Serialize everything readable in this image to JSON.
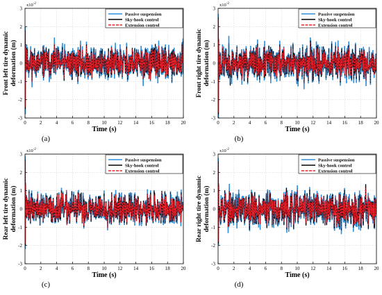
{
  "figure": {
    "series_names": [
      "Passive suspension",
      "Sky-hook control",
      "Extension control"
    ],
    "series_colors": [
      "#2f8fd8",
      "#000000",
      "#e8202a"
    ],
    "exponent_label": "x10",
    "exponent_sup": "-2"
  },
  "chart_data": [
    {
      "type": "line",
      "panel_label": "(a)",
      "ylabel_line1": "Front left tire dynamic",
      "ylabel_line2": "deformation (m)",
      "xlabel": "Time (s)",
      "xlim": [
        0,
        20
      ],
      "ylim": [
        -3,
        3
      ],
      "y_scale_note": "x10^-2",
      "x_ticks": [
        0,
        2,
        4,
        6,
        8,
        10,
        12,
        14,
        16,
        18,
        20
      ],
      "y_ticks": [
        -3,
        -2,
        -1,
        0,
        1,
        2,
        3
      ],
      "series_amplitude_x1e2": [
        {
          "name": "Passive suspension",
          "typical_peak": 1.4,
          "initial_spike": [
            2.0,
            -2.8
          ]
        },
        {
          "name": "Sky-hook control",
          "typical_peak": 1.2,
          "initial_spike": [
            1.8,
            -2.5
          ]
        },
        {
          "name": "Extension control",
          "typical_peak": 1.1,
          "initial_spike": [
            1.7,
            -2.4
          ]
        }
      ],
      "legend_position": "top-right",
      "grid": true,
      "seed": 11
    },
    {
      "type": "line",
      "panel_label": "(b)",
      "ylabel_line1": "Front right tire dynamic",
      "ylabel_line2": "deformation (m)",
      "xlabel": "Time (s)",
      "xlim": [
        0,
        20
      ],
      "ylim": [
        -3,
        3
      ],
      "y_scale_note": "x10^-2",
      "x_ticks": [
        0,
        2,
        4,
        6,
        8,
        10,
        12,
        14,
        16,
        18,
        20
      ],
      "y_ticks": [
        -3,
        -2,
        -1,
        0,
        1,
        2,
        3
      ],
      "series_amplitude_x1e2": [
        {
          "name": "Passive suspension",
          "typical_peak": 1.5,
          "initial_spike": [
            2.7,
            -3.0
          ]
        },
        {
          "name": "Sky-hook control",
          "typical_peak": 1.3,
          "initial_spike": [
            2.5,
            -2.8
          ]
        },
        {
          "name": "Extension control",
          "typical_peak": 1.2,
          "initial_spike": [
            2.4,
            -2.7
          ]
        }
      ],
      "legend_position": "top-right",
      "grid": true,
      "seed": 23
    },
    {
      "type": "line",
      "panel_label": "(c)",
      "ylabel_line1": "Rear left tire dynamic",
      "ylabel_line2": "deformation (m)",
      "xlabel": "Time (s)",
      "xlim": [
        0,
        20
      ],
      "ylim": [
        -3,
        3
      ],
      "y_scale_note": "x10^-2",
      "x_ticks": [
        0,
        2,
        4,
        6,
        8,
        10,
        12,
        14,
        16,
        18,
        20
      ],
      "y_ticks": [
        -3,
        -2,
        -1,
        0,
        1,
        2,
        3
      ],
      "series_amplitude_x1e2": [
        {
          "name": "Passive suspension",
          "typical_peak": 1.3,
          "initial_spike": [
            2.9,
            -2.2
          ]
        },
        {
          "name": "Sky-hook control",
          "typical_peak": 1.2,
          "initial_spike": [
            2.7,
            -2.0
          ]
        },
        {
          "name": "Extension control",
          "typical_peak": 1.1,
          "initial_spike": [
            2.6,
            -1.9
          ]
        }
      ],
      "legend_position": "top-right",
      "grid": true,
      "seed": 37
    },
    {
      "type": "line",
      "panel_label": "(d)",
      "ylabel_line1": "Rear right tire dynamic",
      "ylabel_line2": "deformation (m)",
      "xlabel": "Time (s)",
      "xlim": [
        0,
        20
      ],
      "ylim": [
        -3,
        3
      ],
      "y_scale_note": "x10^-2",
      "x_ticks": [
        0,
        2,
        4,
        6,
        8,
        10,
        12,
        14,
        16,
        18,
        20
      ],
      "y_ticks": [
        -3,
        -2,
        -1,
        0,
        1,
        2,
        3
      ],
      "series_amplitude_x1e2": [
        {
          "name": "Passive suspension",
          "typical_peak": 1.5,
          "initial_spike": [
            2.8,
            -2.0
          ]
        },
        {
          "name": "Sky-hook control",
          "typical_peak": 1.3,
          "initial_spike": [
            2.6,
            -1.9
          ]
        },
        {
          "name": "Extension control",
          "typical_peak": 1.2,
          "initial_spike": [
            2.5,
            -1.8
          ]
        }
      ],
      "legend_position": "top-right",
      "grid": true,
      "seed": 53
    }
  ]
}
